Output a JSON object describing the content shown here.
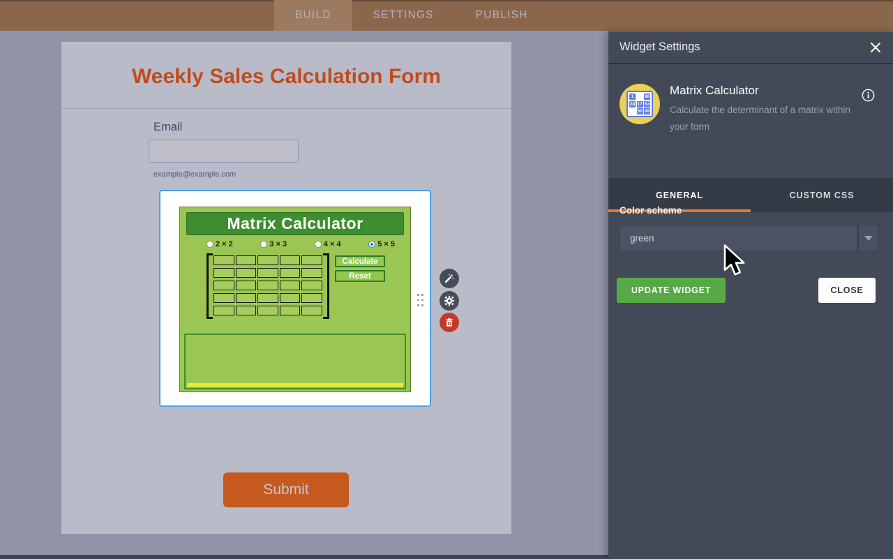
{
  "topbar": {
    "tabs": [
      {
        "label": "BUILD",
        "active": true
      },
      {
        "label": "SETTINGS",
        "active": false
      },
      {
        "label": "PUBLISH",
        "active": false
      }
    ]
  },
  "form": {
    "title": "Weekly Sales Calculation Form",
    "email_label": "Email",
    "email_value": "",
    "email_sublabel": "example@example.com",
    "submit_label": "Submit"
  },
  "widget": {
    "title": "Matrix Calculator",
    "size_options": [
      {
        "label": "2 × 2",
        "selected": false
      },
      {
        "label": "3 × 3",
        "selected": false
      },
      {
        "label": "4 × 4",
        "selected": false
      },
      {
        "label": "5 × 5",
        "selected": true
      }
    ],
    "grid_rows": 5,
    "grid_cols": 5,
    "calculate_label": "Calculate",
    "reset_label": "Reset"
  },
  "panel": {
    "title": "Widget Settings",
    "widget_name": "Matrix Calculator",
    "widget_description": "Calculate the determinant of a matrix within your form",
    "tabs": [
      {
        "label": "GENERAL",
        "active": true
      },
      {
        "label": "CUSTOM CSS",
        "active": false
      }
    ],
    "color_scheme_label": "Color scheme",
    "color_scheme_value": "green",
    "update_button": "UPDATE WIDGET",
    "close_button": "CLOSE",
    "icon_numbers": [
      [
        "1",
        "",
        "88"
      ],
      [
        "28",
        "17",
        "63"
      ],
      [
        "",
        "50",
        "49"
      ]
    ]
  },
  "colors": {
    "topbar": "#8a674b",
    "topbar_active_tab": "#9c7a5f",
    "canvas_bg": "#9194a9",
    "paper_bg": "#babbc8",
    "title_orange": "#bf4c1e",
    "widget_green": "#9cc653",
    "widget_header_green": "#3e8e30",
    "selection_blue": "#4aa0e8",
    "panel_bg": "#434a57",
    "tab_accent_orange": "#e8772e",
    "update_green": "#57a946",
    "submit_orange": "#c5591e",
    "delete_red": "#c23a28",
    "icon_yellow": "#ecd055",
    "result_strip_yellow": "#eded2d"
  }
}
